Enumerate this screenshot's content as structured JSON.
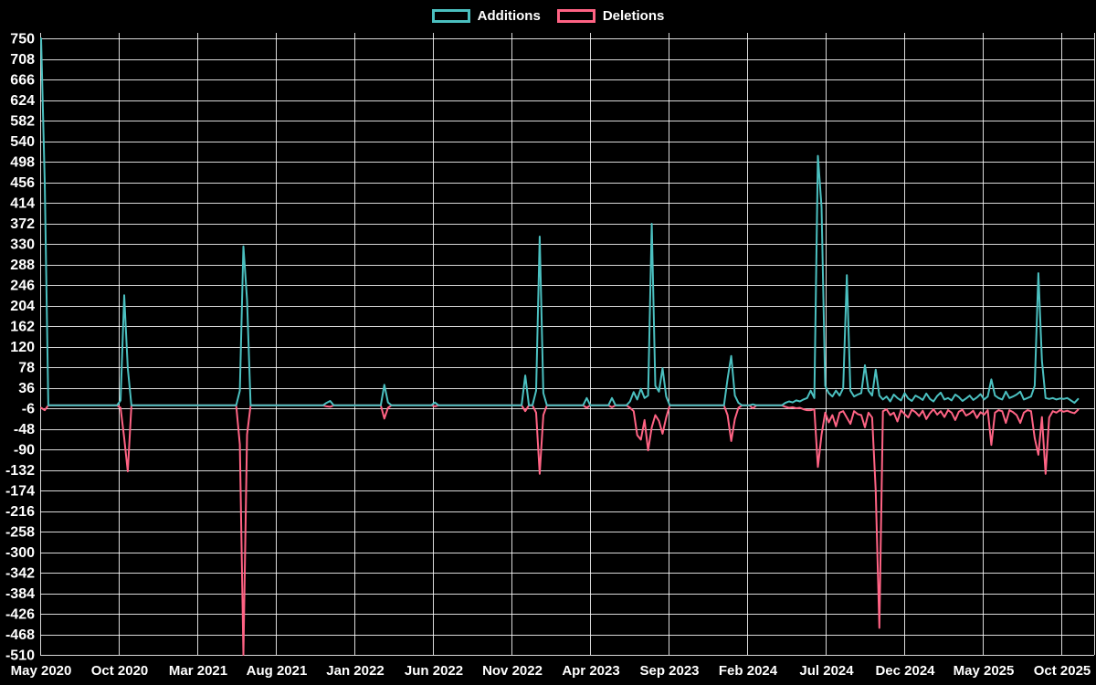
{
  "page": {
    "background": "#000000",
    "text_color": "#ffffff",
    "grid_color": "#ffffff"
  },
  "legend": {
    "position": "top",
    "items": [
      {
        "label": "Additions",
        "color": "#4bc0c0"
      },
      {
        "label": "Deletions",
        "color": "#ff6384"
      }
    ]
  },
  "chart_data": {
    "type": "line",
    "title": "",
    "xlabel": "",
    "ylabel": "",
    "grid": true,
    "legend_position": "top",
    "x_axis": {
      "unit": "weeks",
      "start_label": "May 2020",
      "end_label": "Oct 2025",
      "tick_labels": [
        "May 2020",
        "Oct 2020",
        "Mar 2021",
        "Aug 2021",
        "Jan 2022",
        "Jun 2022",
        "Nov 2022",
        "Apr 2023",
        "Sep 2023",
        "Feb 2024",
        "Jul 2024",
        "Dec 2024",
        "May 2025",
        "Oct 2025"
      ]
    },
    "y_axis": {
      "max": 750,
      "min": -510,
      "step": 42,
      "tick_labels": [
        "750",
        "708",
        "666",
        "624",
        "582",
        "540",
        "498",
        "456",
        "414",
        "372",
        "330",
        "288",
        "246",
        "204",
        "162",
        "120",
        "78",
        "36",
        "-6",
        "-48",
        "-90",
        "-132",
        "-174",
        "-216",
        "-258",
        "-300",
        "-342",
        "-384",
        "-426",
        "-468",
        "-510"
      ]
    },
    "weeks_total": 292,
    "series": [
      {
        "name": "Additions",
        "color": "#4bc0c0",
        "values": [
          750,
          455,
          0,
          0,
          0,
          0,
          0,
          0,
          0,
          0,
          0,
          0,
          0,
          0,
          0,
          0,
          0,
          0,
          0,
          0,
          0,
          0,
          10,
          225,
          76,
          0,
          0,
          0,
          0,
          0,
          0,
          0,
          0,
          0,
          0,
          0,
          0,
          0,
          0,
          0,
          0,
          0,
          0,
          0,
          0,
          0,
          0,
          0,
          0,
          0,
          0,
          0,
          0,
          0,
          0,
          30,
          325,
          215,
          0,
          0,
          0,
          0,
          0,
          0,
          0,
          0,
          0,
          0,
          0,
          0,
          0,
          0,
          0,
          0,
          0,
          0,
          0,
          0,
          0,
          5,
          9,
          0,
          0,
          0,
          0,
          0,
          0,
          0,
          0,
          0,
          0,
          0,
          0,
          0,
          0,
          42,
          6,
          0,
          0,
          0,
          0,
          0,
          0,
          0,
          0,
          0,
          0,
          0,
          0,
          6,
          0,
          0,
          0,
          0,
          0,
          0,
          0,
          0,
          0,
          0,
          0,
          0,
          0,
          0,
          0,
          0,
          0,
          0,
          0,
          0,
          0,
          0,
          0,
          0,
          61,
          0,
          0,
          30,
          345,
          25,
          0,
          0,
          0,
          0,
          0,
          0,
          0,
          0,
          0,
          0,
          0,
          15,
          0,
          0,
          0,
          0,
          0,
          0,
          15,
          0,
          0,
          0,
          0,
          8,
          27,
          12,
          34,
          15,
          20,
          371,
          40,
          28,
          76,
          18,
          0,
          0,
          0,
          0,
          0,
          0,
          0,
          0,
          0,
          0,
          0,
          0,
          0,
          0,
          0,
          0,
          54,
          101,
          20,
          5,
          0,
          0,
          0,
          2,
          0,
          0,
          0,
          0,
          0,
          0,
          0,
          0,
          5,
          8,
          6,
          10,
          8,
          12,
          15,
          30,
          15,
          510,
          405,
          40,
          25,
          18,
          30,
          20,
          35,
          266,
          30,
          18,
          22,
          25,
          82,
          30,
          20,
          73,
          20,
          12,
          18,
          8,
          22,
          15,
          10,
          25,
          14,
          9,
          20,
          16,
          11,
          24,
          13,
          8,
          19,
          26,
          12,
          15,
          10,
          22,
          17,
          9,
          14,
          20,
          11,
          16,
          23,
          12,
          18,
          53,
          20,
          15,
          12,
          28,
          15,
          18,
          22,
          28,
          12,
          15,
          18,
          40,
          270,
          91,
          15,
          13,
          15,
          12,
          14,
          13,
          15,
          10,
          5,
          13
        ]
      },
      {
        "name": "Deletions",
        "color": "#ff6384",
        "values": [
          -5,
          -10,
          0,
          0,
          0,
          0,
          0,
          0,
          0,
          0,
          0,
          0,
          0,
          0,
          0,
          0,
          0,
          0,
          0,
          0,
          0,
          0,
          -5,
          -67,
          -135,
          0,
          0,
          0,
          0,
          0,
          0,
          0,
          0,
          0,
          0,
          0,
          0,
          0,
          0,
          0,
          0,
          0,
          0,
          0,
          0,
          0,
          0,
          0,
          0,
          0,
          0,
          0,
          0,
          0,
          0,
          -80,
          -510,
          -60,
          0,
          0,
          0,
          0,
          0,
          0,
          0,
          0,
          0,
          0,
          0,
          0,
          0,
          0,
          0,
          0,
          0,
          0,
          0,
          0,
          0,
          -2,
          -3,
          0,
          0,
          0,
          0,
          0,
          0,
          0,
          0,
          0,
          0,
          0,
          0,
          0,
          0,
          -27,
          -5,
          0,
          0,
          0,
          0,
          0,
          0,
          0,
          0,
          0,
          0,
          0,
          0,
          -2,
          0,
          0,
          0,
          0,
          0,
          0,
          0,
          0,
          0,
          0,
          0,
          0,
          0,
          0,
          0,
          0,
          0,
          0,
          0,
          0,
          0,
          0,
          0,
          0,
          -12,
          0,
          0,
          -15,
          -140,
          -20,
          0,
          0,
          0,
          0,
          0,
          0,
          0,
          0,
          0,
          0,
          0,
          -5,
          0,
          0,
          0,
          0,
          0,
          0,
          -4,
          0,
          0,
          0,
          0,
          -5,
          -12,
          -61,
          -70,
          -30,
          -92,
          -45,
          -20,
          -32,
          -58,
          -25,
          0,
          0,
          0,
          0,
          0,
          0,
          0,
          0,
          0,
          0,
          0,
          0,
          0,
          0,
          0,
          0,
          -20,
          -73,
          -28,
          -5,
          0,
          0,
          0,
          -6,
          0,
          0,
          0,
          0,
          0,
          0,
          0,
          0,
          -3,
          -5,
          -4,
          -6,
          -5,
          -8,
          -10,
          -10,
          -8,
          -126,
          -60,
          -15,
          -35,
          -20,
          -43,
          -15,
          -12,
          -25,
          -38,
          -12,
          -18,
          -20,
          -45,
          -15,
          -25,
          -174,
          -455,
          -12,
          -8,
          -20,
          -15,
          -33,
          -10,
          -18,
          -25,
          -9,
          -14,
          -22,
          -11,
          -28,
          -16,
          -8,
          -19,
          -12,
          -24,
          -10,
          -15,
          -30,
          -13,
          -9,
          -21,
          -17,
          -11,
          -26,
          -14,
          -19,
          -10,
          -81,
          -15,
          -10,
          -12,
          -36,
          -10,
          -14,
          -20,
          -36,
          -15,
          -10,
          -12,
          -67,
          -101,
          -24,
          -140,
          -25,
          -12,
          -15,
          -10,
          -13,
          -11,
          -14,
          -16,
          -9
        ]
      }
    ]
  }
}
